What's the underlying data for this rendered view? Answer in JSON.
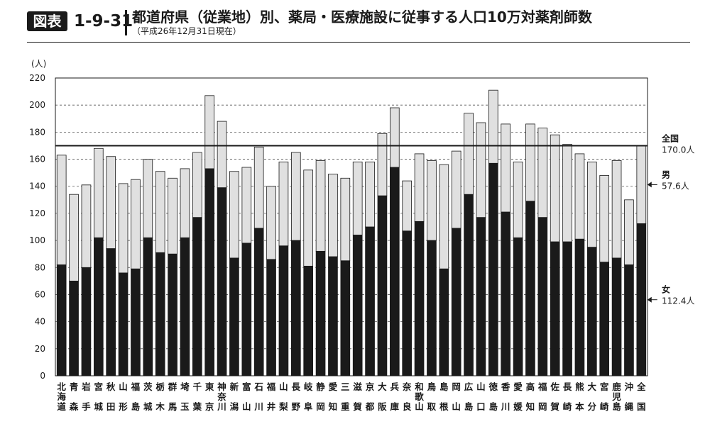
{
  "header": {
    "badge": "図表",
    "figure_number": "1-9-31",
    "title": "都道府県（従業地）別、薬局・医療施設に従事する人口10万対薬剤師数",
    "subtitle": "（平成26年12月31日現在）"
  },
  "colors": {
    "female": "#1a1a1a",
    "male": "#e0e0e0",
    "border": "#1a1a1a",
    "grid": "#555555"
  },
  "chart_data": {
    "type": "bar",
    "stacked": true,
    "yunit": "(人)",
    "ylim": [
      0,
      220
    ],
    "yticks": [
      0,
      20,
      40,
      60,
      80,
      100,
      120,
      140,
      160,
      180,
      200,
      220
    ],
    "grid": "dashed-horizontal",
    "categories": [
      "北海道",
      "青森",
      "岩手",
      "宮城",
      "秋田",
      "山形",
      "福島",
      "茨城",
      "栃木",
      "群馬",
      "埼玉",
      "千葉",
      "東京",
      "神奈川",
      "新潟",
      "富山",
      "石川",
      "福井",
      "山梨",
      "長野",
      "岐阜",
      "静岡",
      "愛知",
      "三重",
      "滋賀",
      "京都",
      "大阪",
      "兵庫",
      "奈良",
      "和歌山",
      "鳥取",
      "島根",
      "岡山",
      "広島",
      "山口",
      "徳島",
      "香川",
      "愛媛",
      "高知",
      "福岡",
      "佐賀",
      "長崎",
      "熊本",
      "大分",
      "宮崎",
      "鹿児島",
      "沖縄",
      "全国"
    ],
    "series": [
      {
        "name": "女",
        "values": [
          82,
          70,
          80,
          102,
          94,
          76,
          79,
          102,
          91,
          90,
          102,
          117,
          153,
          139,
          87,
          98,
          109,
          86,
          96,
          100,
          81,
          92,
          88,
          85,
          104,
          110,
          133,
          154,
          107,
          114,
          100,
          79,
          109,
          134,
          117,
          157,
          121,
          102,
          129,
          117,
          99,
          99,
          101,
          95,
          84,
          87,
          82,
          112.4
        ]
      },
      {
        "name": "男",
        "values": [
          81,
          64,
          61,
          66,
          68,
          66,
          66,
          58,
          60,
          56,
          51,
          48,
          54,
          49,
          64,
          56,
          60,
          54,
          62,
          65,
          71,
          67,
          61,
          61,
          54,
          48,
          46,
          44,
          37,
          50,
          59,
          77,
          57,
          60,
          70,
          54,
          65,
          56,
          57,
          66,
          79,
          72,
          63,
          63,
          64,
          72,
          48,
          57.6
        ]
      }
    ],
    "totals_line": {
      "value": 170.0,
      "label": "全国",
      "value_label": "170.0人"
    },
    "annotations": [
      {
        "label": "男",
        "value_label": "57.6人",
        "target_series": "男"
      },
      {
        "label": "女",
        "value_label": "112.4人",
        "target_series": "女"
      }
    ]
  }
}
